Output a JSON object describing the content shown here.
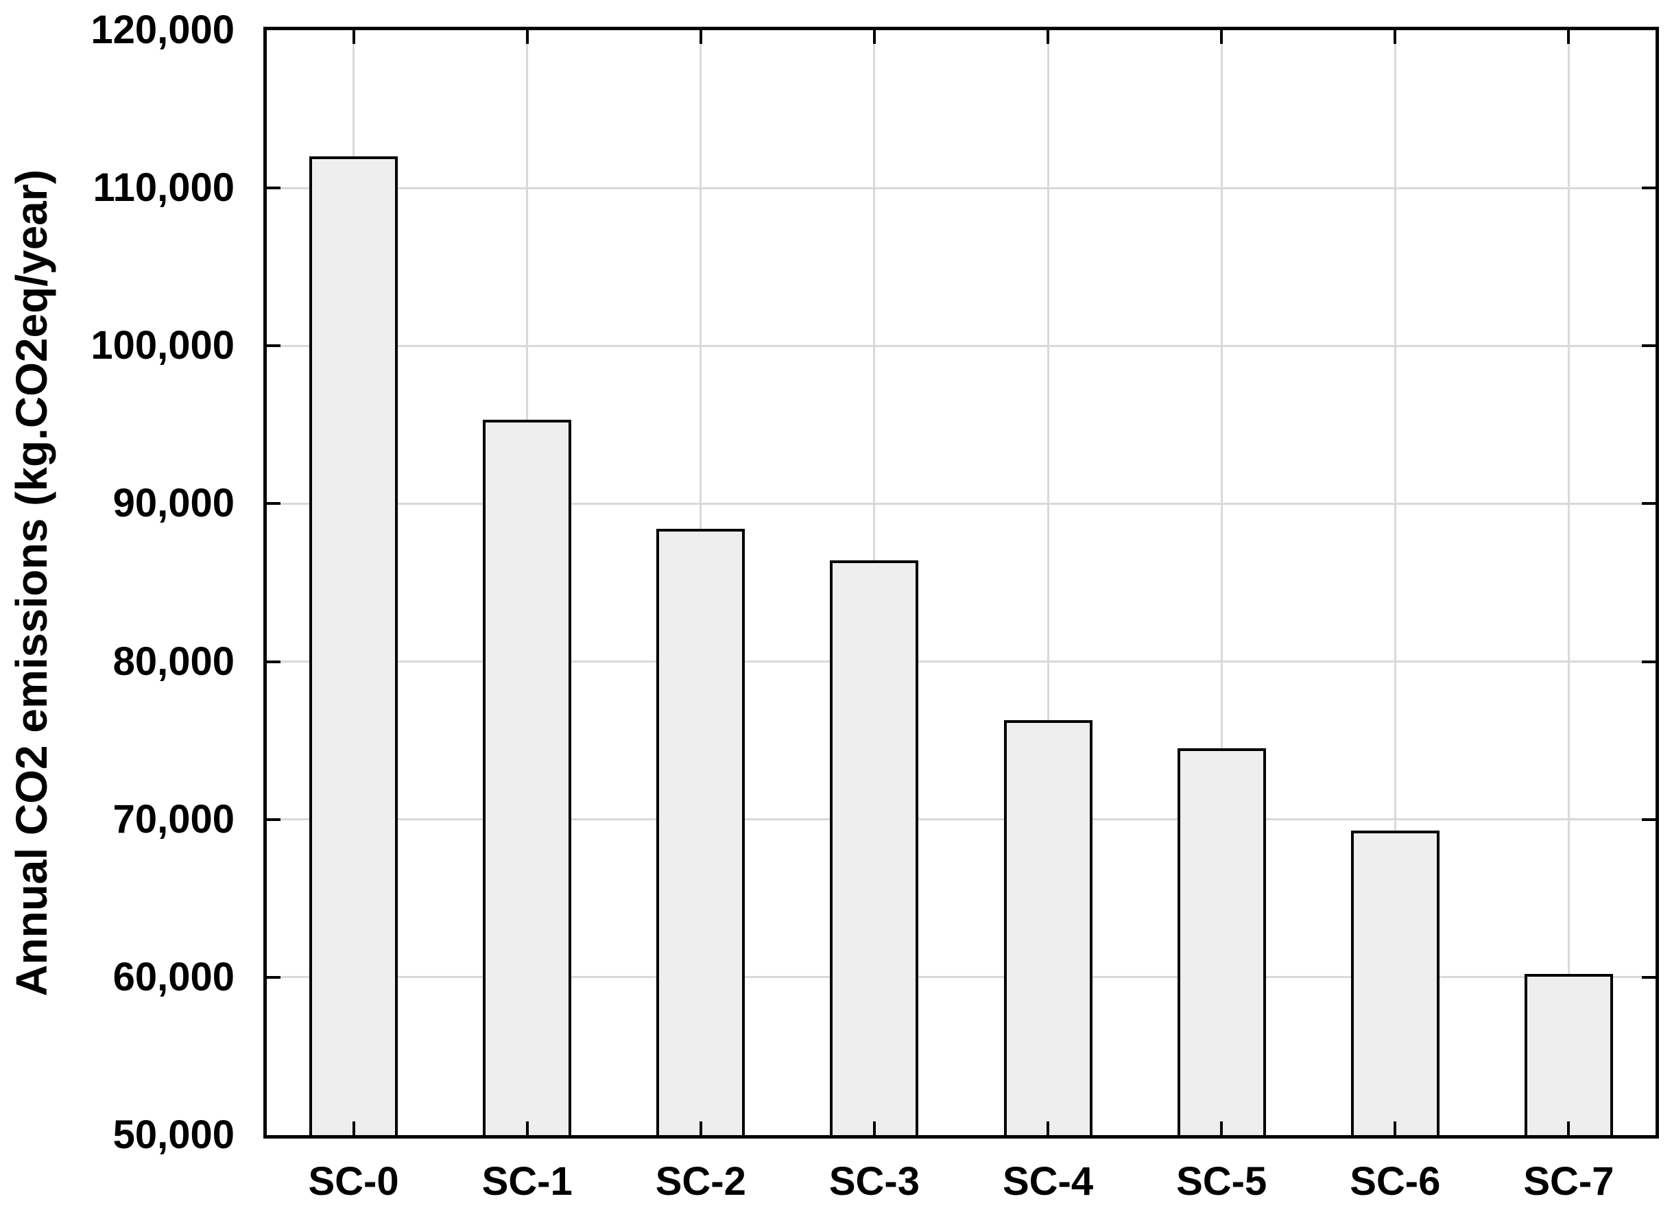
{
  "chart_data": {
    "type": "bar",
    "title": "",
    "xlabel": "",
    "ylabel": "Annual CO2 emissions (kg.CO2eq/year)",
    "categories": [
      "SC-0",
      "SC-1",
      "SC-2",
      "SC-3",
      "SC-4",
      "SC-5",
      "SC-6",
      "SC-7"
    ],
    "values": [
      112000,
      95300,
      88400,
      86400,
      76300,
      74500,
      69300,
      60200
    ],
    "ylim": [
      50000,
      120000
    ],
    "ytick_values": [
      50000,
      60000,
      70000,
      80000,
      90000,
      100000,
      110000,
      120000
    ],
    "ytick_labels": [
      "50,000",
      "60,000",
      "70,000",
      "80,000",
      "90,000",
      "100,000",
      "110,000",
      "120,000"
    ],
    "grid": true,
    "legend": "none",
    "bar_width_frac": 0.51,
    "colors": {
      "bar_fill": "#eeeeee",
      "bar_edge": "#000000",
      "grid": "#d9d9d9",
      "axis": "#000000",
      "text": "#000000",
      "background": "#ffffff"
    }
  }
}
